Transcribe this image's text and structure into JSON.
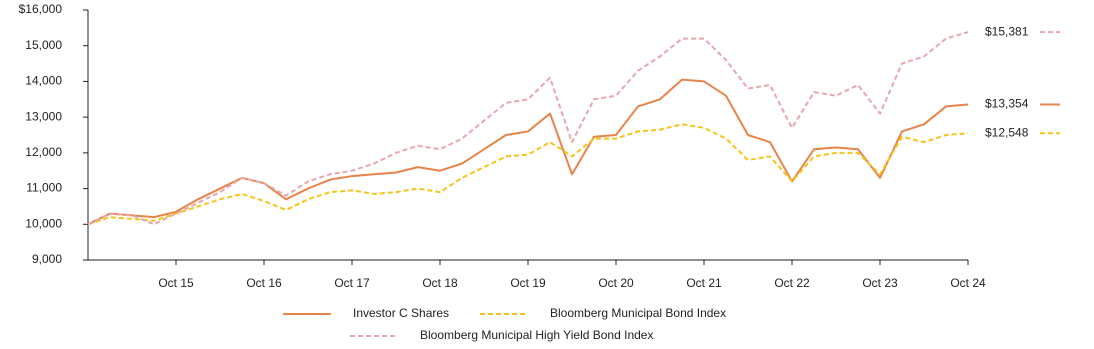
{
  "chart_data": {
    "type": "line",
    "categories": [
      null,
      null,
      null,
      null,
      "Oct 15",
      null,
      null,
      null,
      "Oct 16",
      null,
      null,
      null,
      "Oct 17",
      null,
      null,
      null,
      "Oct 18",
      null,
      null,
      null,
      "Oct 19",
      null,
      null,
      null,
      "Oct 20",
      null,
      null,
      null,
      "Oct 21",
      null,
      null,
      null,
      "Oct 22",
      null,
      null,
      null,
      "Oct 23",
      null,
      null,
      null,
      "Oct 24"
    ],
    "ylim": [
      9000,
      16000
    ],
    "yticks": [
      {
        "value": 9000,
        "label": "9,000"
      },
      {
        "value": 10000,
        "label": "10,000"
      },
      {
        "value": 11000,
        "label": "11,000"
      },
      {
        "value": 12000,
        "label": "12,000"
      },
      {
        "value": 13000,
        "label": "13,000"
      },
      {
        "value": 14000,
        "label": "14,000"
      },
      {
        "value": 15000,
        "label": "15,000"
      },
      {
        "value": 16000,
        "label": "$16,000"
      }
    ],
    "grid": false,
    "legend": "bottom",
    "series": [
      {
        "name": "Investor C Shares",
        "color": "#e8834a",
        "dashed": false,
        "values": [
          10000,
          10300,
          10250,
          10200,
          10350,
          10700,
          11000,
          11300,
          11150,
          10700,
          11000,
          11250,
          11350,
          11400,
          11450,
          11600,
          11500,
          11700,
          12100,
          12500,
          12600,
          13100,
          11400,
          12450,
          12500,
          13300,
          13500,
          14050,
          14000,
          13600,
          12500,
          12300,
          11200,
          12100,
          12150,
          12100,
          11300,
          12600,
          12800,
          13300,
          13354
        ],
        "value_labels": [
          null,
          null,
          null,
          null,
          null,
          null,
          null,
          null,
          null,
          null,
          null,
          null,
          null,
          null,
          null,
          null,
          null,
          null,
          null,
          null,
          null,
          null,
          null,
          null,
          null,
          null,
          null,
          null,
          null,
          null,
          null,
          null,
          null,
          null,
          null,
          null,
          null,
          null,
          null,
          null,
          "$13,354"
        ]
      },
      {
        "name": "Bloomberg Municipal Bond Index",
        "color": "#f5c518",
        "dashed": true,
        "values": [
          10000,
          10200,
          10150,
          10100,
          10300,
          10500,
          10700,
          10850,
          10650,
          10400,
          10700,
          10900,
          10950,
          10850,
          10900,
          11000,
          10900,
          11300,
          11600,
          11900,
          11950,
          12300,
          11900,
          12400,
          12400,
          12600,
          12650,
          12800,
          12700,
          12400,
          11800,
          11900,
          11200,
          11900,
          12000,
          12000,
          11400,
          12450,
          12300,
          12500,
          12548
        ],
        "value_labels": [
          null,
          null,
          null,
          null,
          null,
          null,
          null,
          null,
          null,
          null,
          null,
          null,
          null,
          null,
          null,
          null,
          null,
          null,
          null,
          null,
          null,
          null,
          null,
          null,
          null,
          null,
          null,
          null,
          null,
          null,
          null,
          null,
          null,
          null,
          null,
          null,
          null,
          null,
          null,
          null,
          "$12,548"
        ]
      },
      {
        "name": "Bloomberg Municipal High Yield Bond Index",
        "color": "#e8a7ad",
        "dashed": true,
        "values": [
          10000,
          10300,
          10250,
          10000,
          10300,
          10600,
          10900,
          11300,
          11150,
          10800,
          11200,
          11400,
          11500,
          11700,
          12000,
          12200,
          12100,
          12400,
          12900,
          13400,
          13500,
          14100,
          12300,
          13500,
          13600,
          14300,
          14700,
          15200,
          15200,
          14600,
          13800,
          13900,
          12700,
          13700,
          13600,
          13900,
          13100,
          14500,
          14700,
          15200,
          15381
        ],
        "value_labels": [
          null,
          null,
          null,
          null,
          null,
          null,
          null,
          null,
          null,
          null,
          null,
          null,
          null,
          null,
          null,
          null,
          null,
          null,
          null,
          null,
          null,
          null,
          null,
          null,
          null,
          null,
          null,
          null,
          null,
          null,
          null,
          null,
          null,
          null,
          null,
          null,
          null,
          null,
          null,
          null,
          "$15,381"
        ]
      }
    ]
  }
}
